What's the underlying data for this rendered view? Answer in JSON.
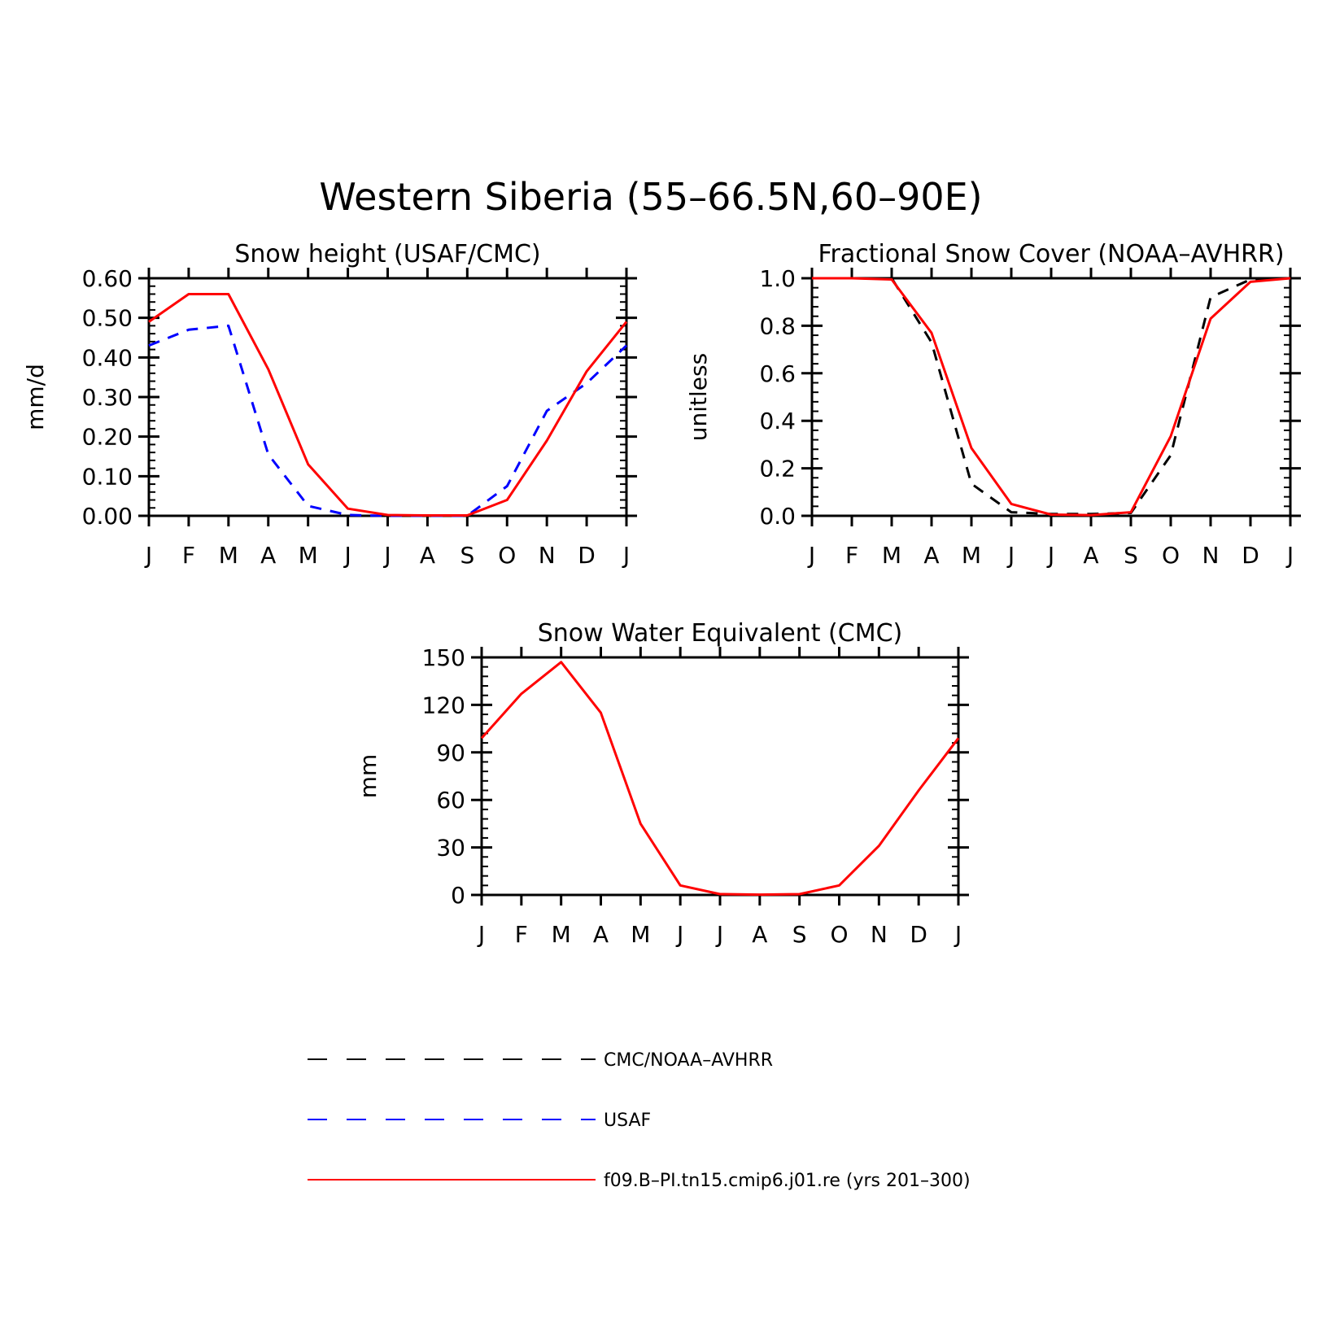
{
  "figure_title": "Western Siberia (55–66.5N,60–90E)",
  "colors": {
    "obs_black": "#000000",
    "usaf_blue": "#0000ff",
    "model_red": "#ff0000"
  },
  "legend": [
    {
      "label": "CMC/NOAA–AVHRR",
      "color": "#000000",
      "dash": "long-dash"
    },
    {
      "label": "USAF",
      "color": "#0000ff",
      "dash": "long-dash"
    },
    {
      "label": "f09.B–PI.tn15.cmip6.j01.re (yrs 201–300)",
      "color": "#ff0000",
      "dash": "solid"
    }
  ],
  "chart_data": [
    {
      "type": "line",
      "title": "Snow height (USAF/CMC)",
      "ylabel": "mm/d",
      "xlabel": "",
      "categories": [
        "J",
        "F",
        "M",
        "A",
        "M",
        "J",
        "J",
        "A",
        "S",
        "O",
        "N",
        "D",
        "J"
      ],
      "ylim": [
        0,
        0.6
      ],
      "yticks": [
        "0.00",
        "0.10",
        "0.20",
        "0.30",
        "0.40",
        "0.50",
        "0.60"
      ],
      "series": [
        {
          "name": "CMC/NOAA–AVHRR",
          "color": "#000000",
          "dash": "long",
          "values": [
            0,
            0,
            0,
            0,
            0,
            0,
            0,
            0,
            0,
            0,
            0,
            0,
            0
          ]
        },
        {
          "name": "USAF",
          "color": "#0000ff",
          "dash": "short",
          "values": [
            0.43,
            0.47,
            0.48,
            0.155,
            0.025,
            0.002,
            0.0,
            0.0,
            0.0,
            0.075,
            0.265,
            0.335,
            0.43
          ]
        },
        {
          "name": "f09.B–PI.tn15.cmip6.j01.re (yrs 201–300)",
          "color": "#ff0000",
          "dash": "solid",
          "values": [
            0.49,
            0.56,
            0.56,
            0.37,
            0.13,
            0.018,
            0.002,
            0.001,
            0.001,
            0.04,
            0.19,
            0.365,
            0.49
          ]
        }
      ]
    },
    {
      "type": "line",
      "title": "Fractional Snow Cover (NOAA–AVHRR)",
      "ylabel": "unitless",
      "xlabel": "",
      "categories": [
        "J",
        "F",
        "M",
        "A",
        "M",
        "J",
        "J",
        "A",
        "S",
        "O",
        "N",
        "D",
        "J"
      ],
      "ylim": [
        0,
        1
      ],
      "yticks": [
        "0.0",
        "0.2",
        "0.4",
        "0.6",
        "0.8",
        "1.0"
      ],
      "series": [
        {
          "name": "CMC/NOAA–AVHRR",
          "color": "#000000",
          "dash": "short",
          "values": [
            1.0,
            1.0,
            1.0,
            0.73,
            0.135,
            0.015,
            0.008,
            0.008,
            0.012,
            0.255,
            0.92,
            0.995,
            1.0
          ]
        },
        {
          "name": "f09.B–PI.tn15.cmip6.j01.re (yrs 201–300)",
          "color": "#ff0000",
          "dash": "solid",
          "values": [
            1.0,
            1.0,
            0.995,
            0.77,
            0.285,
            0.05,
            0.005,
            0.003,
            0.015,
            0.335,
            0.83,
            0.985,
            1.0
          ]
        }
      ]
    },
    {
      "type": "line",
      "title": "Snow Water Equivalent (CMC)",
      "ylabel": "mm",
      "xlabel": "",
      "categories": [
        "J",
        "F",
        "M",
        "A",
        "M",
        "J",
        "J",
        "A",
        "S",
        "O",
        "N",
        "D",
        "J"
      ],
      "ylim": [
        0,
        150
      ],
      "yticks": [
        "0",
        "30",
        "60",
        "90",
        "120",
        "150"
      ],
      "series": [
        {
          "name": "CMC/NOAA–AVHRR",
          "color": "#000000",
          "dash": "long",
          "values": [
            0,
            0,
            0,
            0,
            0,
            0,
            0,
            0,
            0,
            0,
            0,
            0,
            0
          ]
        },
        {
          "name": "f09.B–PI.tn15.cmip6.j01.re (yrs 201–300)",
          "color": "#ff0000",
          "dash": "solid",
          "values": [
            99,
            127,
            147,
            115,
            45,
            6,
            0.5,
            0.2,
            0.5,
            6,
            31,
            66,
            99
          ]
        }
      ]
    }
  ]
}
